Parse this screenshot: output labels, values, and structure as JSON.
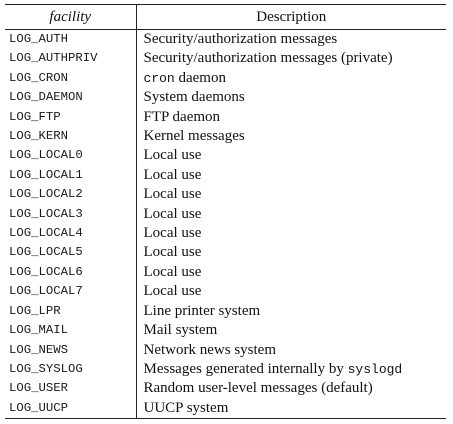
{
  "table": {
    "headers": {
      "facility": "facility",
      "description": "Description"
    },
    "rows": [
      {
        "facility": "LOG_AUTH",
        "description": "Security/authorization messages"
      },
      {
        "facility": "LOG_AUTHPRIV",
        "description": "Security/authorization messages (private)"
      },
      {
        "facility": "LOG_CRON",
        "desc_code": "cron",
        "description": " daemon"
      },
      {
        "facility": "LOG_DAEMON",
        "description": "System daemons"
      },
      {
        "facility": "LOG_FTP",
        "description": "FTP daemon"
      },
      {
        "facility": "LOG_KERN",
        "description": "Kernel messages"
      },
      {
        "facility": "LOG_LOCAL0",
        "description": "Local use"
      },
      {
        "facility": "LOG_LOCAL1",
        "description": "Local use"
      },
      {
        "facility": "LOG_LOCAL2",
        "description": "Local use"
      },
      {
        "facility": "LOG_LOCAL3",
        "description": "Local use"
      },
      {
        "facility": "LOG_LOCAL4",
        "description": "Local use"
      },
      {
        "facility": "LOG_LOCAL5",
        "description": "Local use"
      },
      {
        "facility": "LOG_LOCAL6",
        "description": "Local use"
      },
      {
        "facility": "LOG_LOCAL7",
        "description": "Local use"
      },
      {
        "facility": "LOG_LPR",
        "description": "Line printer system"
      },
      {
        "facility": "LOG_MAIL",
        "description": "Mail system"
      },
      {
        "facility": "LOG_NEWS",
        "description": "Network news system"
      },
      {
        "facility": "LOG_SYSLOG",
        "description": "Messages generated internally by ",
        "desc_code_after": "syslogd"
      },
      {
        "facility": "LOG_USER",
        "description": "Random user-level messages (default)"
      },
      {
        "facility": "LOG_UUCP",
        "description": "UUCP system"
      }
    ]
  }
}
